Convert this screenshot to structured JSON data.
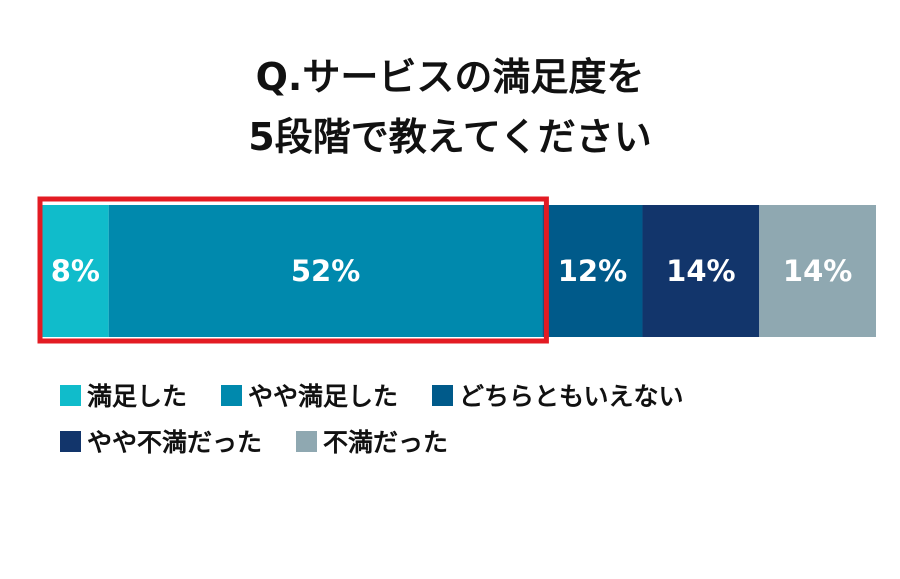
{
  "chart_data": {
    "type": "bar",
    "orientation": "horizontal-stacked-100",
    "title": "Q.サービスの満足度を\n5段階で教えてください",
    "title_lines": [
      "Q.サービスの満足度を",
      "5段階で教えてください"
    ],
    "categories": [
      "満足した",
      "やや満足した",
      "どちらともいえない",
      "やや不満だった",
      "不満だった"
    ],
    "values": [
      8,
      52,
      12,
      14,
      14
    ],
    "value_labels": [
      "8%",
      "52%",
      "12%",
      "14%",
      "14%"
    ],
    "colors": [
      "#10bccb",
      "#0089ad",
      "#005a8a",
      "#12356b",
      "#8fa8b1"
    ],
    "label_color": "#ffffff",
    "highlight": {
      "categories": [
        "満足した",
        "やや満足した"
      ],
      "color": "#e31b23"
    },
    "legend_position": "bottom-left",
    "grid": false
  }
}
